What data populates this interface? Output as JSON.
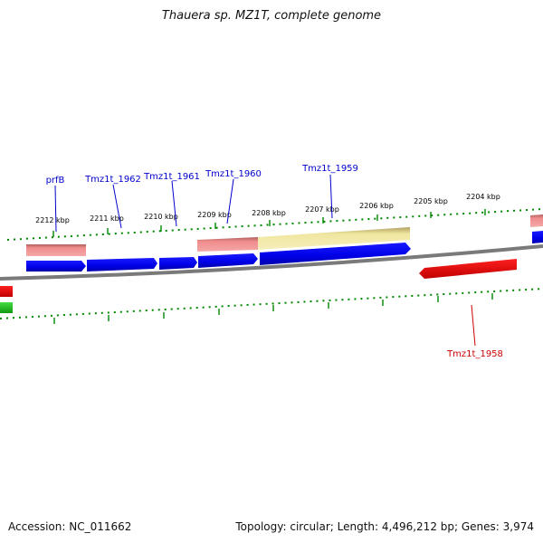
{
  "title": "Thauera sp. MZ1T, complete genome",
  "footer": {
    "accession": "Accession: NC_011662",
    "summary": "Topology: circular; Length: 4,496,212 bp; Genes: 3,974"
  },
  "scale_labels": [
    "2212 kbp",
    "2211 kbp",
    "2210 kbp",
    "2209 kbp",
    "2208 kbp",
    "2207 kbp",
    "2206 kbp",
    "2205 kbp",
    "2204 kbp"
  ],
  "gene_labels": {
    "prfB": "prfB",
    "tmz1962": "Tmz1t_1962",
    "tmz1961": "Tmz1t_1961",
    "tmz1960": "Tmz1t_1960",
    "tmz1959": "Tmz1t_1959",
    "tmz1958": "Tmz1t_1958"
  },
  "colors": {
    "forward_gene": "#0000ee",
    "reverse_gene": "#ee0000",
    "rna_pink": "#f09090",
    "rna_yellow": "#f0e8a0",
    "rrna_green": "#22bb22",
    "tick": "#008800",
    "backbone": "#888888",
    "label_blue": "#0000cc",
    "label_red": "#cc0000"
  }
}
